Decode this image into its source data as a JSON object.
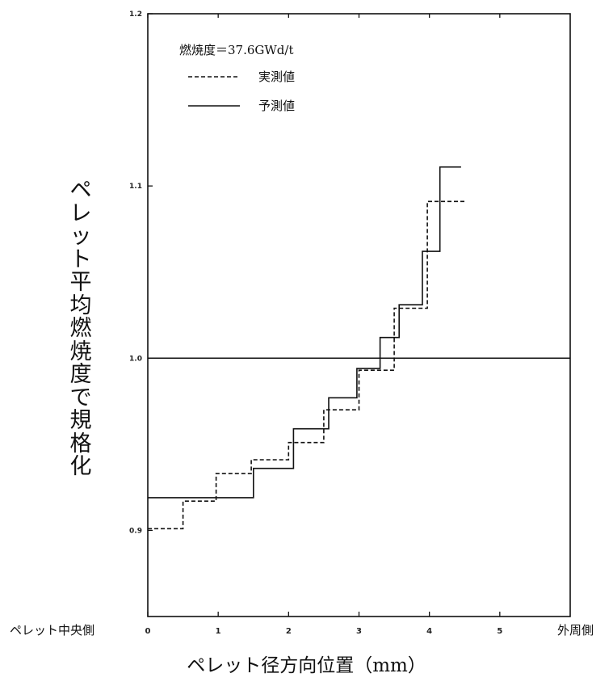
{
  "chart_data": {
    "type": "line",
    "xlabel": "ペレット径方向位置（mm）",
    "ylabel": "ペレット平均燃焼度で規格化",
    "x_left_label": "ペレット中央側",
    "x_right_label": "外周側",
    "annotation": "燃焼度＝37.6GWd/t",
    "xlim": [
      0,
      6
    ],
    "ylim": [
      0.85,
      1.2
    ],
    "x_ticks": [
      "0",
      "1",
      "2",
      "3",
      "4",
      "5"
    ],
    "y_ticks": [
      "0.9",
      "1.0",
      "1.1",
      "1.2"
    ],
    "reference_line": 1.0,
    "series": [
      {
        "name": "実測値",
        "style": "dashed",
        "x": [
          0,
          0.5,
          0.5,
          0.97,
          0.97,
          1.47,
          1.47,
          2.0,
          2.0,
          2.5,
          2.5,
          3.0,
          3.0,
          3.5,
          3.5,
          3.97,
          3.97,
          4.5
        ],
        "y": [
          0.901,
          0.901,
          0.917,
          0.917,
          0.933,
          0.933,
          0.941,
          0.941,
          0.951,
          0.951,
          0.97,
          0.97,
          0.993,
          0.993,
          1.029,
          1.029,
          1.091,
          1.091
        ]
      },
      {
        "name": "予測値",
        "style": "solid",
        "x": [
          0,
          1.5,
          1.5,
          2.07,
          2.07,
          2.57,
          2.57,
          2.97,
          2.97,
          3.3,
          3.3,
          3.57,
          3.57,
          3.9,
          3.9,
          4.15,
          4.15,
          4.45
        ],
        "y": [
          0.919,
          0.919,
          0.936,
          0.936,
          0.959,
          0.959,
          0.977,
          0.977,
          0.994,
          0.994,
          1.012,
          1.012,
          1.031,
          1.031,
          1.062,
          1.062,
          1.111,
          1.111
        ]
      }
    ],
    "colors": {
      "axis": "#111111",
      "line": "#111111"
    }
  }
}
